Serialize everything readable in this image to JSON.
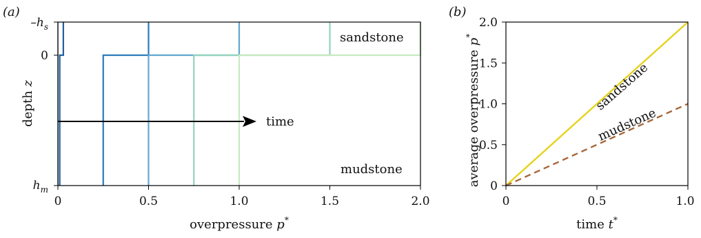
{
  "chart_data": [
    {
      "panel": "(a)",
      "type": "line",
      "xlabel": "overpressure",
      "xlabel_symbol": "p",
      "xlabel_sup": "*",
      "ylabel": "depth",
      "ylabel_symbol": "z",
      "xlim": [
        0,
        2
      ],
      "x_ticks": [
        "0",
        "0.5",
        "1.0",
        "1.5",
        "2.0"
      ],
      "y_ticks": [
        {
          "text": "–h",
          "sub": "s",
          "depth": "-hs"
        },
        {
          "text": "0",
          "sub": "",
          "depth": "0"
        },
        {
          "text": "h",
          "sub": "m",
          "depth": "hm"
        }
      ],
      "annotations": {
        "sandstone": "sandstone",
        "mudstone": "mudstone",
        "arrow": "time"
      },
      "series": [
        {
          "color": "#c8c8c8",
          "sand_value": 0.0,
          "mud_value": 0.0
        },
        {
          "color": "#1f5fa0",
          "sand_value": 0.03,
          "mud_value": 0.01
        },
        {
          "color": "#2b7bba",
          "sand_value": 0.5,
          "mud_value": 0.25
        },
        {
          "color": "#5fa8d0",
          "sand_value": 1.0,
          "mud_value": 0.5
        },
        {
          "color": "#92d3bd",
          "sand_value": 1.5,
          "mud_value": 0.75
        },
        {
          "color": "#c6e9c2",
          "sand_value": 2.0,
          "mud_value": 1.0
        }
      ]
    },
    {
      "panel": "(b)",
      "type": "line",
      "xlabel": "time",
      "xlabel_symbol": "t",
      "xlabel_sup": "*",
      "ylabel": "average overpressure",
      "ylabel_symbol": "p",
      "ylabel_sup": "*",
      "xlim": [
        0,
        1
      ],
      "ylim": [
        0,
        2
      ],
      "x_ticks": [
        "0",
        "0.5",
        "1.0"
      ],
      "y_ticks": [
        "0",
        "0.5",
        "1.0",
        "1.5",
        "2.0"
      ],
      "series": [
        {
          "name": "sandstone",
          "color": "#e6d21c",
          "style": "solid",
          "x": [
            0,
            1
          ],
          "y": [
            0,
            2
          ]
        },
        {
          "name": "mudstone",
          "color": "#a8673a",
          "style": "dashed",
          "x": [
            0,
            1
          ],
          "y": [
            0,
            1
          ]
        }
      ]
    }
  ]
}
